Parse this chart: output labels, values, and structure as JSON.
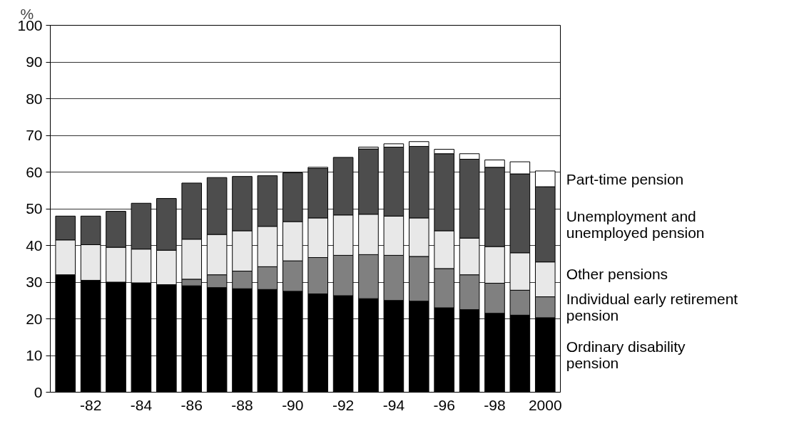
{
  "chart_data": {
    "type": "bar",
    "stacked": true,
    "ylabel": "%",
    "ylim": [
      0,
      100
    ],
    "yticks": [
      0,
      10,
      20,
      30,
      40,
      50,
      60,
      70,
      80,
      90,
      100
    ],
    "grid": "y",
    "categories": [
      null,
      "-82",
      null,
      "-84",
      null,
      "-86",
      null,
      "-88",
      null,
      "-90",
      null,
      "-92",
      null,
      "-94",
      null,
      "-96",
      null,
      "-98",
      null,
      "2000"
    ],
    "series": [
      {
        "name": "Ordinary disability\npension",
        "color": "#000000",
        "values": [
          32,
          30.5,
          30,
          29.8,
          29.3,
          29,
          28.5,
          28.2,
          28,
          27.5,
          26.8,
          26.3,
          25.5,
          25,
          24.8,
          23,
          22.5,
          21.5,
          21,
          20.3
        ]
      },
      {
        "name": "Individual early retirement\npension",
        "color": "#808080",
        "values": [
          null,
          null,
          null,
          null,
          null,
          1.8,
          3.5,
          4.8,
          6.2,
          8.3,
          9.9,
          11,
          12,
          12.3,
          12.2,
          10.7,
          9.5,
          8.2,
          6.8,
          5.7
        ]
      },
      {
        "name": "Other pensions",
        "color": "#e8e8e8",
        "values": [
          9.5,
          9.7,
          9.5,
          9.2,
          9.4,
          10.9,
          11,
          11,
          11,
          10.7,
          10.8,
          11,
          11,
          10.7,
          10.5,
          10.3,
          10,
          10,
          10.2,
          9.5
        ]
      },
      {
        "name": "Unemployment and\nunemployed pension",
        "color": "#4d4d4d",
        "values": [
          6.5,
          7.8,
          9.8,
          12.5,
          14.1,
          15.3,
          15.5,
          14.8,
          13.8,
          13.3,
          13.5,
          15.7,
          17.8,
          18.8,
          19.5,
          21,
          21.5,
          21.6,
          21.5,
          20.5
        ]
      },
      {
        "name": "Part-time pension",
        "color": "#ffffff",
        "values": [
          null,
          null,
          null,
          null,
          null,
          null,
          null,
          null,
          null,
          null,
          0.3,
          null,
          0.5,
          0.9,
          1.3,
          1.2,
          1.5,
          2,
          3.3,
          4.3
        ]
      }
    ]
  }
}
